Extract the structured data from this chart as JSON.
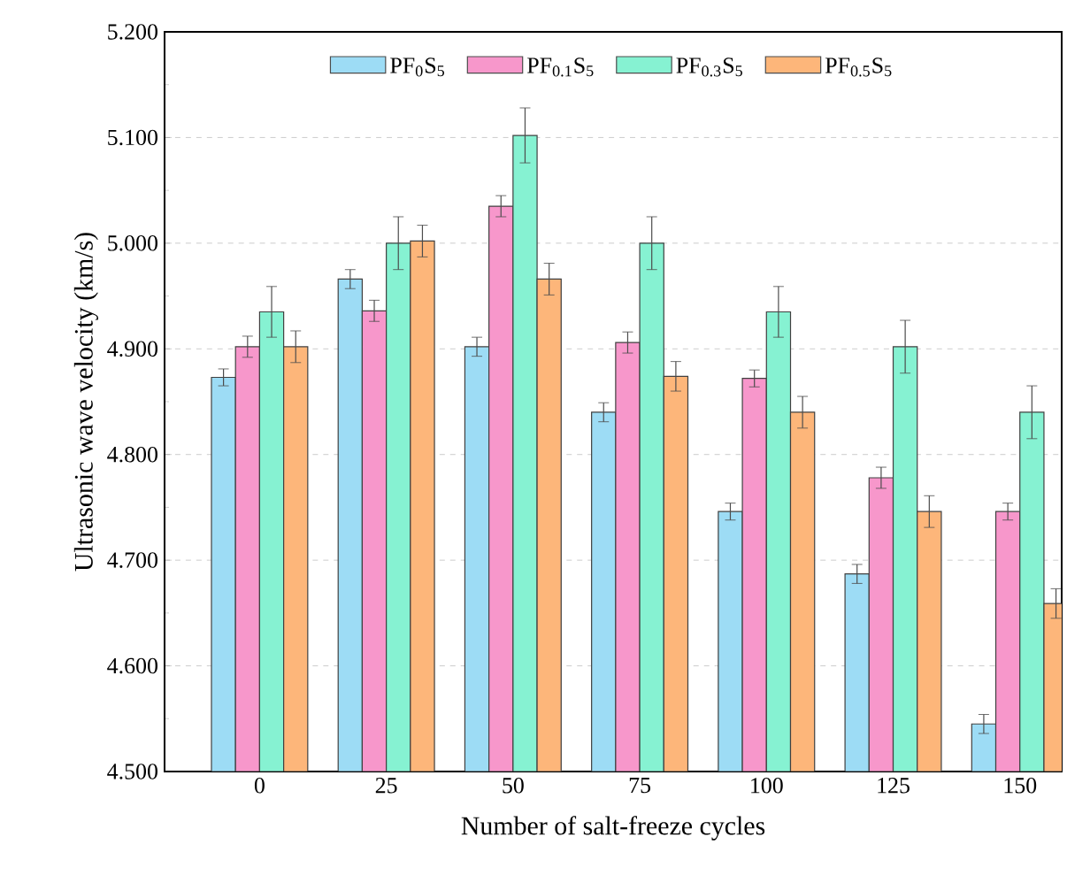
{
  "chart_data": {
    "type": "bar",
    "xlabel": "Number of salt-freeze cycles",
    "ylabel": "Ultrasonic wave velocity (km/s)",
    "categories": [
      "0",
      "25",
      "50",
      "75",
      "100",
      "125",
      "150"
    ],
    "series": [
      {
        "name": "PF$_{0}$S$_{5}$",
        "color": "#9ddcf5",
        "values": [
          4.873,
          4.966,
          4.902,
          4.84,
          4.746,
          4.687,
          4.545
        ],
        "errors": [
          0.008,
          0.009,
          0.009,
          0.009,
          0.008,
          0.009,
          0.009
        ]
      },
      {
        "name": "PF$_{0.1}$S$_{5}$",
        "color": "#f797cb",
        "values": [
          4.902,
          4.936,
          5.035,
          4.906,
          4.872,
          4.778,
          4.746
        ],
        "errors": [
          0.01,
          0.01,
          0.01,
          0.01,
          0.008,
          0.01,
          0.008
        ]
      },
      {
        "name": "PF$_{0.3}$S$_{5}$",
        "color": "#86f2d2",
        "values": [
          4.935,
          5.0,
          5.102,
          5.0,
          4.935,
          4.902,
          4.84
        ],
        "errors": [
          0.024,
          0.025,
          0.026,
          0.025,
          0.024,
          0.025,
          0.025
        ]
      },
      {
        "name": "PF$_{0.5}$S$_{5}$",
        "color": "#fdb67a",
        "values": [
          4.902,
          5.002,
          4.966,
          4.874,
          4.84,
          4.746,
          4.659
        ],
        "errors": [
          0.015,
          0.015,
          0.015,
          0.014,
          0.015,
          0.015,
          0.014
        ]
      }
    ],
    "ylim": [
      4.5,
      5.2
    ],
    "yticks": [
      {
        "value": 4.5,
        "label": "4.500"
      },
      {
        "value": 4.6,
        "label": "4.600"
      },
      {
        "value": 4.7,
        "label": "4.700"
      },
      {
        "value": 4.8,
        "label": "4.800"
      },
      {
        "value": 4.9,
        "label": "4.900"
      },
      {
        "value": 5.0,
        "label": "5.000"
      },
      {
        "value": 5.1,
        "label": "5.100"
      },
      {
        "value": 5.2,
        "label": "5.200"
      }
    ],
    "grid": "y",
    "legend": "top"
  }
}
